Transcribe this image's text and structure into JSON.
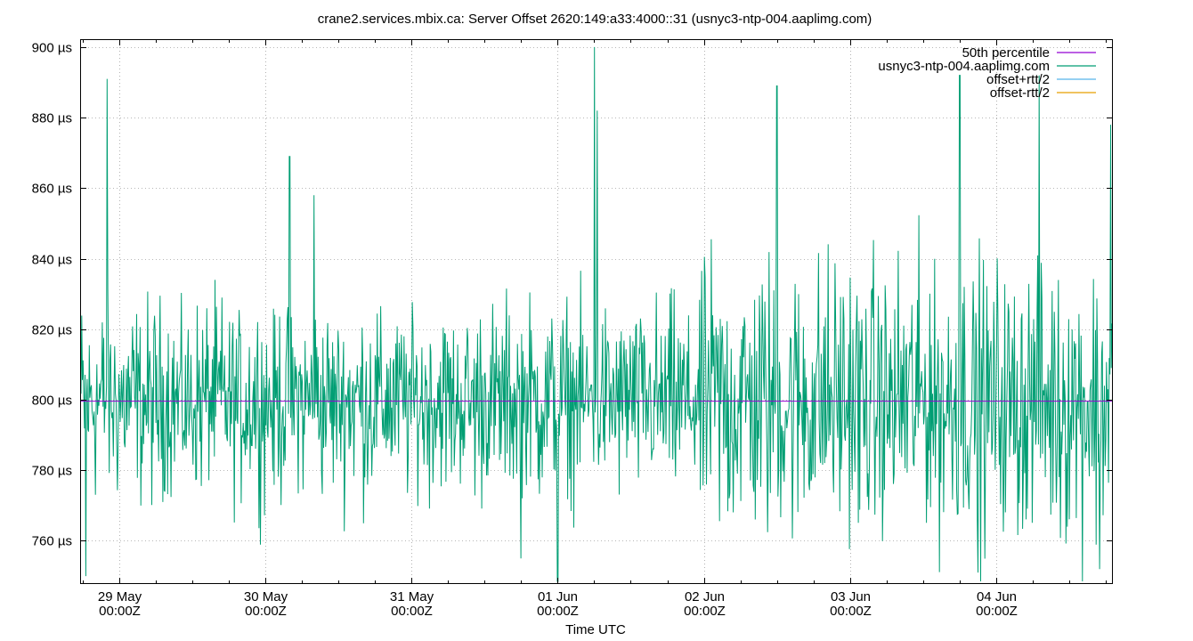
{
  "chart_data": {
    "type": "line",
    "title": "crane2.services.mbix.ca: Server Offset 2620:149:a33:4000::31 (usnyc3-ntp-004.aaplimg.com)",
    "xlabel": "Time UTC",
    "ylabel": "",
    "y_unit": "µs",
    "ylim": [
      748,
      902
    ],
    "y_ticks": [
      760,
      780,
      800,
      820,
      840,
      860,
      880,
      900
    ],
    "x_ticks": [
      {
        "day": "29 May",
        "time": "00:00Z"
      },
      {
        "day": "30 May",
        "time": "00:00Z"
      },
      {
        "day": "31 May",
        "time": "00:00Z"
      },
      {
        "day": "01 Jun",
        "time": "00:00Z"
      },
      {
        "day": "02 Jun",
        "time": "00:00Z"
      },
      {
        "day": "03 Jun",
        "time": "00:00Z"
      },
      {
        "day": "04 Jun",
        "time": "00:00Z"
      }
    ],
    "xlim": [
      "28 May 17:45Z",
      "04 Jun 19:00Z"
    ],
    "grid": true,
    "legend_position": "top-right",
    "series": [
      {
        "name": "50th percentile",
        "color": "#9400d3",
        "value": 799.6
      },
      {
        "name": "usnyc3-ntp-004.aaplimg.com",
        "color": "#009e73",
        "sampled_peaks": [
          {
            "t": "28 May 22:00Z",
            "v": 891
          },
          {
            "t": "28 May 18:30Z",
            "v": 750
          },
          {
            "t": "30 May 04:00Z",
            "v": 869
          },
          {
            "t": "30 May 08:00Z",
            "v": 858
          },
          {
            "t": "31 May 18:00Z",
            "v": 755
          },
          {
            "t": "01 Jun 00:00Z",
            "v": 748
          },
          {
            "t": "01 Jun 06:00Z",
            "v": 900
          },
          {
            "t": "01 Jun 06:30Z",
            "v": 882
          },
          {
            "t": "02 Jun 12:00Z",
            "v": 889
          },
          {
            "t": "03 Jun 18:00Z",
            "v": 892
          },
          {
            "t": "03 Jun 21:00Z",
            "v": 751
          },
          {
            "t": "04 Jun 07:00Z",
            "v": 892
          },
          {
            "t": "04 Jun 17:00Z",
            "v": 752
          },
          {
            "t": "04 Jun 18:45Z",
            "v": 878
          }
        ],
        "typical_range": [
          775,
          830
        ]
      },
      {
        "name": "offset+rtt/2",
        "color": "#56b4e9"
      },
      {
        "name": "offset-rtt/2",
        "color": "#e69f00"
      }
    ]
  }
}
